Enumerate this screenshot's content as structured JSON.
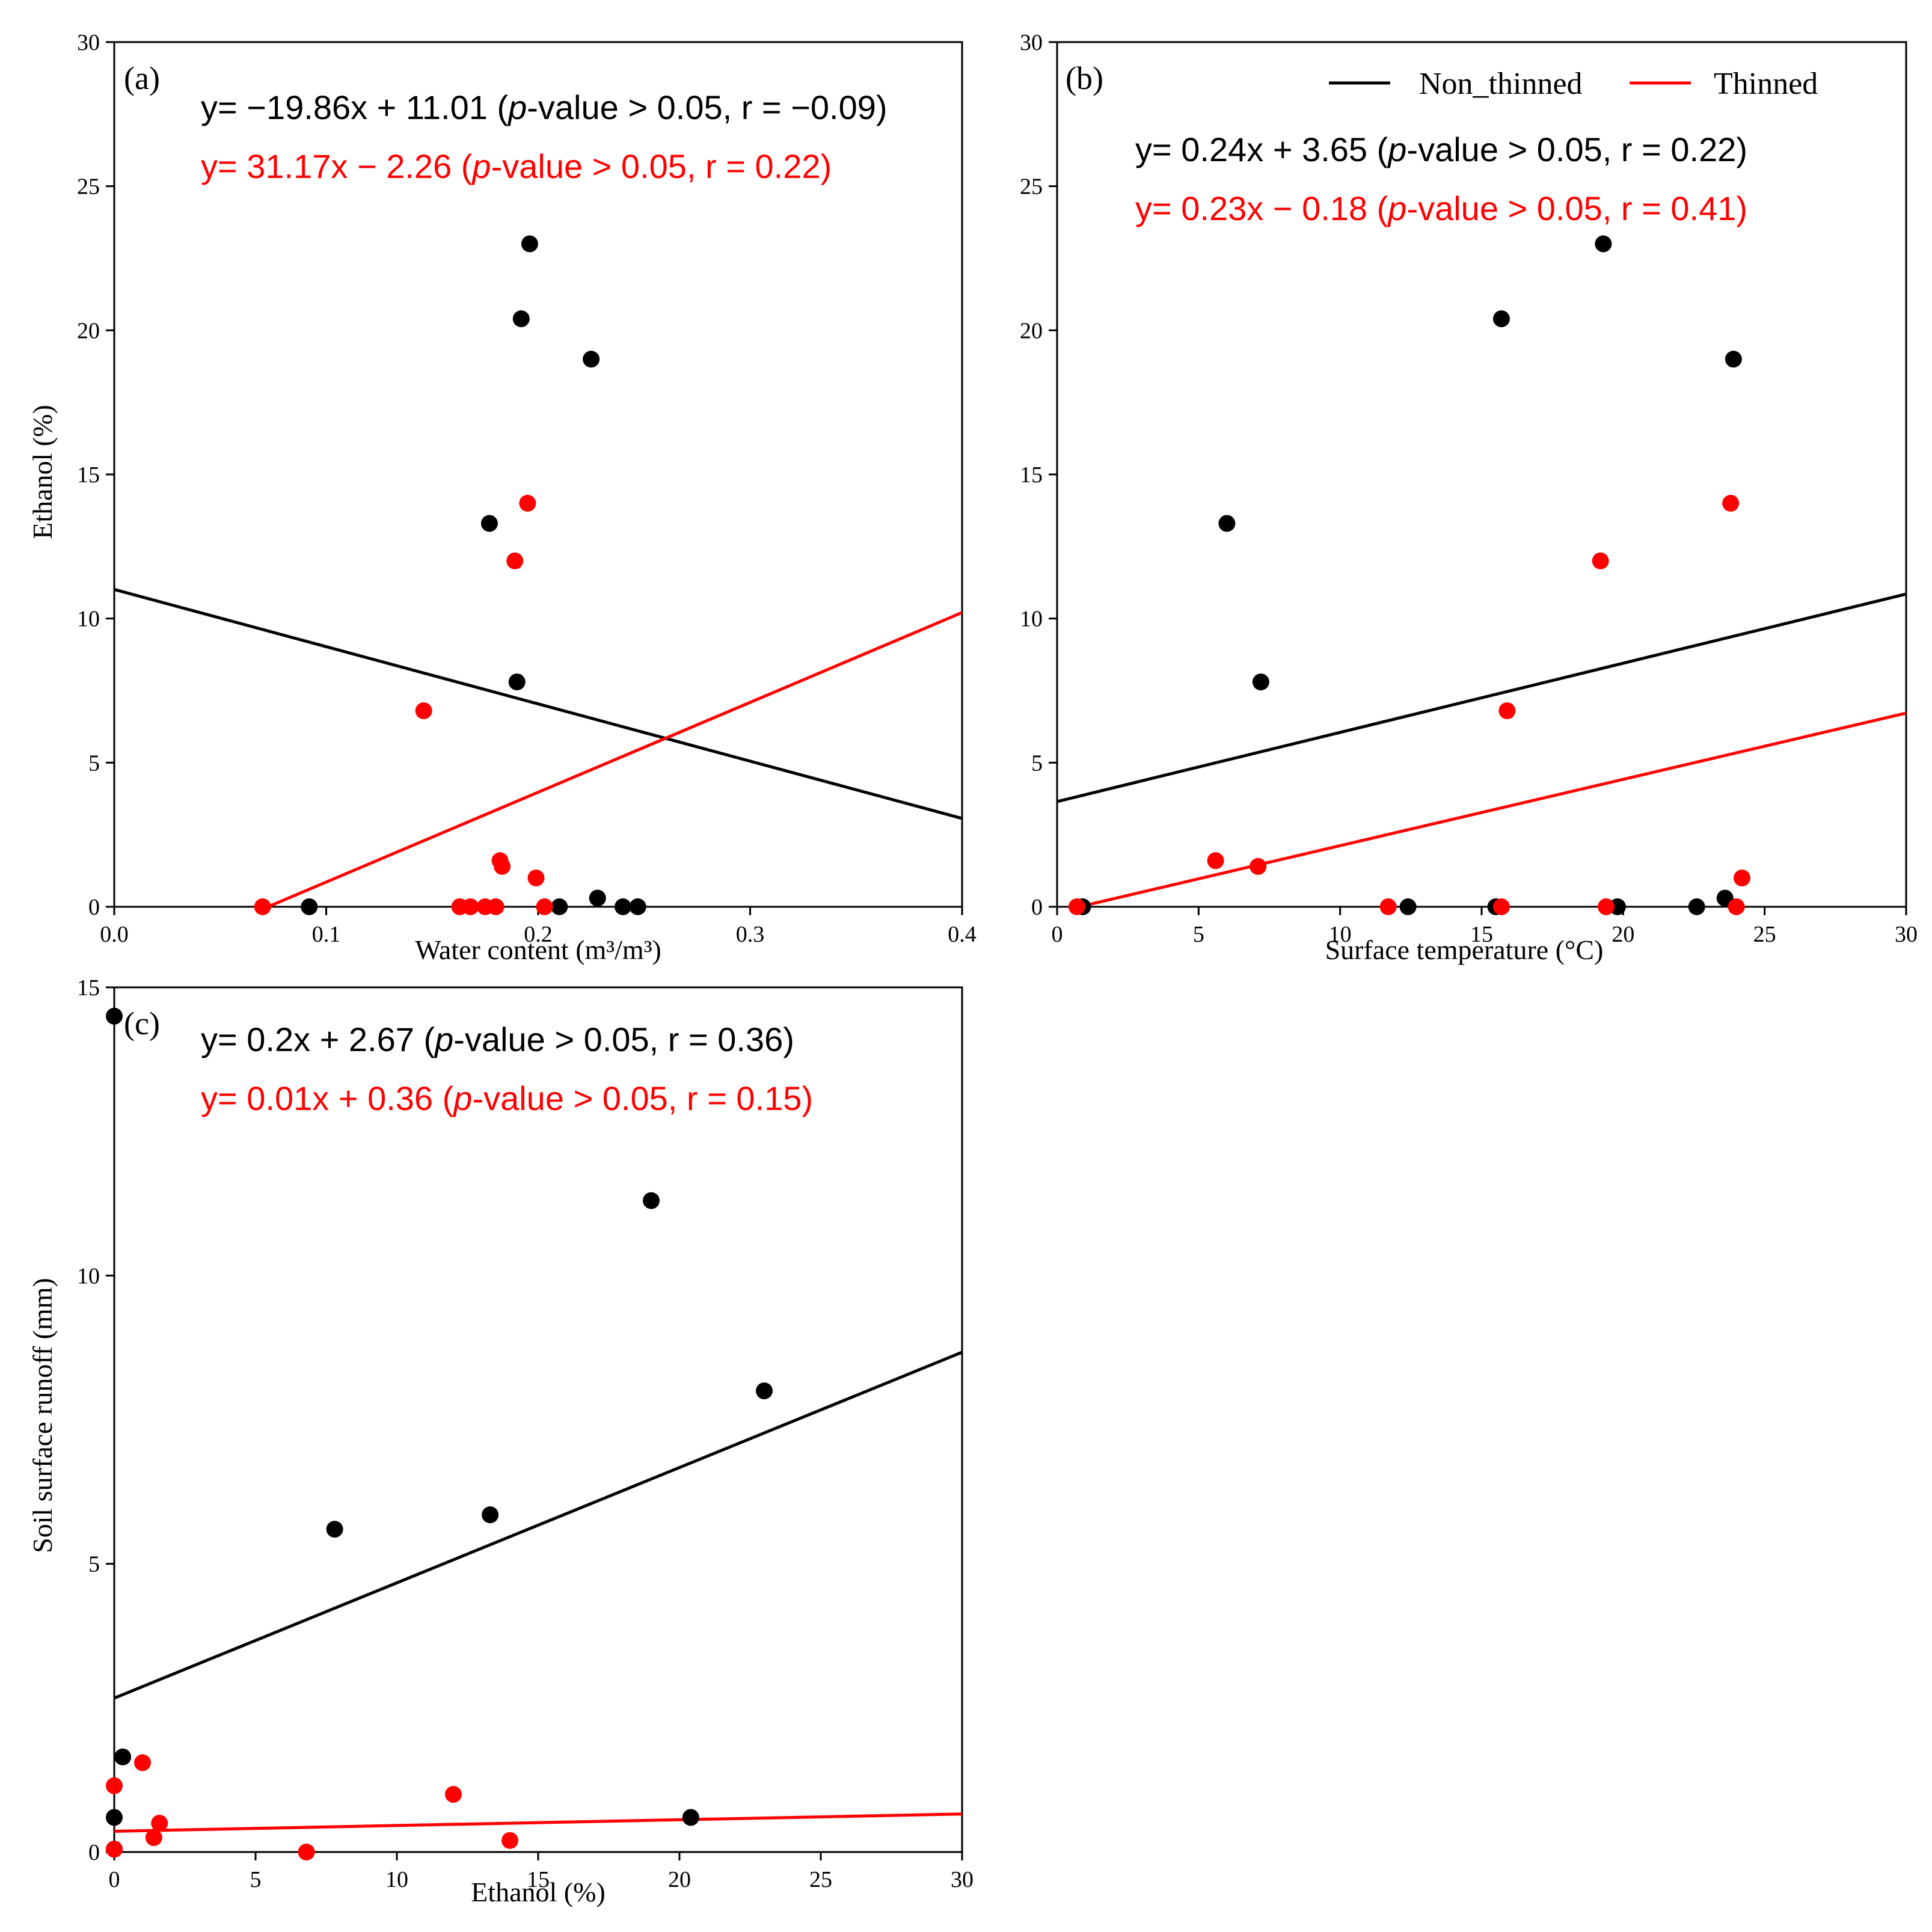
{
  "colors": {
    "non_thinned": "#000000",
    "thinned": "#ff0000"
  },
  "legend": {
    "non_thinned": "Non_thinned",
    "thinned": "Thinned"
  },
  "chart_data": [
    {
      "id": "a",
      "type": "scatter",
      "panel_label": "(a)",
      "xlabel": "Water content (m³/m³)",
      "ylabel": "Ethanol (%)",
      "xlim": [
        0,
        0.4
      ],
      "ylim": [
        0,
        30
      ],
      "xticks": [
        0,
        0.1,
        0.2,
        0.3,
        0.4
      ],
      "xtick_labels": [
        "0.0",
        "0.1",
        "0.2",
        "0.3",
        "0.4"
      ],
      "yticks": [
        0,
        5,
        10,
        15,
        20,
        25,
        30
      ],
      "ytick_labels": [
        "0",
        "5",
        "10",
        "15",
        "20",
        "25",
        "30"
      ],
      "series": [
        {
          "name": "Non_thinned",
          "color": "#000000",
          "points": [
            [
              0.092,
              0
            ],
            [
              0.177,
              13.3
            ],
            [
              0.19,
              7.8
            ],
            [
              0.192,
              20.4
            ],
            [
              0.196,
              23.0
            ],
            [
              0.21,
              0
            ],
            [
              0.225,
              19.0
            ],
            [
              0.228,
              0.3
            ],
            [
              0.24,
              0
            ],
            [
              0.247,
              0
            ]
          ],
          "fit": {
            "slope": -19.86,
            "intercept": 11.01,
            "x_range": [
              0,
              0.4
            ]
          },
          "equation": {
            "pre": "y= −19.86x + 11.01 (",
            "p": "p",
            "post": "-value > 0.05, r = −0.09)"
          }
        },
        {
          "name": "Thinned",
          "color": "#ff0000",
          "points": [
            [
              0.07,
              0
            ],
            [
              0.146,
              6.8
            ],
            [
              0.163,
              0
            ],
            [
              0.168,
              0
            ],
            [
              0.175,
              0
            ],
            [
              0.18,
              0
            ],
            [
              0.182,
              1.6
            ],
            [
              0.183,
              1.4
            ],
            [
              0.189,
              12.0
            ],
            [
              0.195,
              14.0
            ],
            [
              0.199,
              1.0
            ],
            [
              0.203,
              0
            ]
          ],
          "fit": {
            "slope": 31.17,
            "intercept": -2.26,
            "x_range": [
              0.0725,
              0.4
            ]
          },
          "equation": {
            "pre": "y= 31.17x − 2.26 (",
            "p": "p",
            "post": "-value > 0.05, r = 0.22)"
          }
        }
      ]
    },
    {
      "id": "b",
      "type": "scatter",
      "panel_label": "(b)",
      "xlabel": "Surface temperature (°C)",
      "ylabel": "",
      "xlim": [
        0,
        30
      ],
      "ylim": [
        0,
        30
      ],
      "xticks": [
        0,
        5,
        10,
        15,
        20,
        25,
        30
      ],
      "xtick_labels": [
        "0",
        "5",
        "10",
        "15",
        "20",
        "25",
        "30"
      ],
      "yticks": [
        0,
        5,
        10,
        15,
        20,
        25,
        30
      ],
      "ytick_labels": [
        "0",
        "5",
        "10",
        "15",
        "20",
        "25",
        "30"
      ],
      "series": [
        {
          "name": "Non_thinned",
          "color": "#000000",
          "points": [
            [
              0.9,
              0
            ],
            [
              6.0,
              13.3
            ],
            [
              7.2,
              7.8
            ],
            [
              12.4,
              0
            ],
            [
              15.5,
              0
            ],
            [
              15.7,
              20.4
            ],
            [
              19.3,
              23.0
            ],
            [
              19.8,
              0
            ],
            [
              22.6,
              0
            ],
            [
              23.6,
              0.3
            ],
            [
              23.9,
              19.0
            ]
          ],
          "fit": {
            "slope": 0.24,
            "intercept": 3.65,
            "x_range": [
              0,
              30
            ]
          },
          "equation": {
            "pre": "y= 0.24x + 3.65 (",
            "p": "p",
            "post": "-value > 0.05, r = 0.22)"
          }
        },
        {
          "name": "Thinned",
          "color": "#ff0000",
          "points": [
            [
              0.7,
              0
            ],
            [
              5.6,
              1.6
            ],
            [
              7.1,
              1.4
            ],
            [
              11.7,
              0
            ],
            [
              15.7,
              0
            ],
            [
              15.9,
              6.8
            ],
            [
              19.2,
              12.0
            ],
            [
              19.4,
              0
            ],
            [
              23.8,
              14.0
            ],
            [
              24.0,
              0
            ],
            [
              24.2,
              1.0
            ]
          ],
          "fit": {
            "slope": 0.23,
            "intercept": -0.18,
            "x_range": [
              0.78,
              30
            ]
          },
          "equation": {
            "pre": "y= 0.23x − 0.18 (",
            "p": "p",
            "post": "-value > 0.05, r = 0.41)"
          }
        }
      ]
    },
    {
      "id": "c",
      "type": "scatter",
      "panel_label": "(c)",
      "xlabel": "Ethanol (%)",
      "ylabel": "Soil surface runoff (mm)",
      "xlim": [
        0,
        30
      ],
      "ylim": [
        0,
        15
      ],
      "xticks": [
        0,
        5,
        10,
        15,
        20,
        25,
        30
      ],
      "xtick_labels": [
        "0",
        "5",
        "10",
        "15",
        "20",
        "25",
        "30"
      ],
      "yticks": [
        0,
        5,
        10,
        15
      ],
      "ytick_labels": [
        "0",
        "5",
        "10",
        "15"
      ],
      "series": [
        {
          "name": "Non_thinned",
          "color": "#000000",
          "points": [
            [
              0,
              14.5
            ],
            [
              0,
              0.6
            ],
            [
              0,
              0.05
            ],
            [
              0.3,
              1.65
            ],
            [
              7.8,
              5.6
            ],
            [
              13.3,
              5.85
            ],
            [
              19.0,
              11.3
            ],
            [
              20.4,
              0.6
            ],
            [
              23.0,
              8.0
            ]
          ],
          "fit": {
            "slope": 0.2,
            "intercept": 2.67,
            "x_range": [
              0,
              30
            ]
          },
          "equation": {
            "pre": "y= 0.2x + 2.67 (",
            "p": "p",
            "post": "-value > 0.05, r = 0.36)"
          }
        },
        {
          "name": "Thinned",
          "color": "#ff0000",
          "points": [
            [
              0,
              1.15
            ],
            [
              0,
              0.05
            ],
            [
              1.0,
              1.55
            ],
            [
              1.4,
              0.25
            ],
            [
              1.6,
              0.5
            ],
            [
              6.8,
              0.0
            ],
            [
              12.0,
              1.0
            ],
            [
              14.0,
              0.2
            ]
          ],
          "fit": {
            "slope": 0.01,
            "intercept": 0.36,
            "x_range": [
              0,
              30
            ]
          },
          "equation": {
            "pre": "y= 0.01x + 0.36 (",
            "p": "p",
            "post": "-value > 0.05, r = 0.15)"
          }
        }
      ]
    }
  ]
}
